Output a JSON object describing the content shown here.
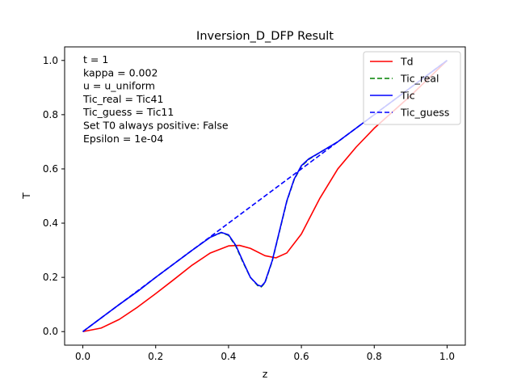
{
  "chart_data": {
    "type": "line",
    "title": "Inversion_D_DFP Result",
    "xlabel": "z",
    "ylabel": "T",
    "xlim": [
      -0.05,
      1.05
    ],
    "ylim": [
      -0.05,
      1.05
    ],
    "xticks": [
      0.0,
      0.2,
      0.4,
      0.6,
      0.8,
      1.0
    ],
    "xtick_labels": [
      "0.0",
      "0.2",
      "0.4",
      "0.6",
      "0.8",
      "1.0"
    ],
    "yticks": [
      0.0,
      0.2,
      0.4,
      0.6,
      0.8,
      1.0
    ],
    "ytick_labels": [
      "0.0",
      "0.2",
      "0.4",
      "0.6",
      "0.8",
      "1.0"
    ],
    "grid": false,
    "legend_position": "top-right",
    "annotation_lines": [
      "t = 1",
      "kappa = 0.002",
      "u = u_uniform",
      "Tic_real = Tic41",
      "Tic_guess = Tic11",
      "Set T0 always positive: False",
      "Epsilon = 1e-04"
    ],
    "series": [
      {
        "name": "Td",
        "color": "#ff0000",
        "dash": "solid",
        "x": [
          0.0,
          0.05,
          0.1,
          0.15,
          0.2,
          0.25,
          0.3,
          0.35,
          0.4,
          0.43,
          0.46,
          0.5,
          0.53,
          0.56,
          0.6,
          0.65,
          0.7,
          0.75,
          0.8,
          0.85,
          0.9,
          0.95,
          1.0
        ],
        "y": [
          0.0,
          0.013,
          0.045,
          0.09,
          0.14,
          0.192,
          0.245,
          0.29,
          0.316,
          0.318,
          0.307,
          0.28,
          0.272,
          0.29,
          0.36,
          0.49,
          0.6,
          0.68,
          0.75,
          0.81,
          0.87,
          0.935,
          1.0
        ]
      },
      {
        "name": "Tic_real",
        "color": "#008000",
        "dash": "dashed",
        "x": [
          0.0,
          0.05,
          0.1,
          0.15,
          0.2,
          0.25,
          0.3,
          0.35,
          0.38,
          0.4,
          0.42,
          0.44,
          0.46,
          0.48,
          0.49,
          0.5,
          0.52,
          0.54,
          0.56,
          0.58,
          0.6,
          0.62,
          0.65,
          0.7,
          0.75,
          0.8,
          0.85,
          0.9,
          0.95,
          1.0
        ],
        "y": [
          0.0,
          0.05,
          0.1,
          0.148,
          0.2,
          0.25,
          0.3,
          0.348,
          0.365,
          0.355,
          0.315,
          0.255,
          0.2,
          0.17,
          0.165,
          0.18,
          0.26,
          0.37,
          0.48,
          0.56,
          0.61,
          0.635,
          0.66,
          0.7,
          0.75,
          0.8,
          0.85,
          0.9,
          0.95,
          1.0
        ]
      },
      {
        "name": "Tic",
        "color": "#0000ff",
        "dash": "solid",
        "x": [
          0.0,
          0.05,
          0.1,
          0.15,
          0.2,
          0.25,
          0.3,
          0.35,
          0.38,
          0.4,
          0.42,
          0.44,
          0.46,
          0.48,
          0.49,
          0.5,
          0.52,
          0.54,
          0.56,
          0.58,
          0.6,
          0.62,
          0.65,
          0.7,
          0.75,
          0.8,
          0.85,
          0.9,
          0.95,
          1.0
        ],
        "y": [
          0.0,
          0.05,
          0.1,
          0.148,
          0.2,
          0.25,
          0.3,
          0.348,
          0.366,
          0.357,
          0.318,
          0.258,
          0.2,
          0.172,
          0.167,
          0.182,
          0.262,
          0.372,
          0.482,
          0.562,
          0.612,
          0.637,
          0.66,
          0.7,
          0.75,
          0.8,
          0.85,
          0.9,
          0.95,
          1.0
        ]
      },
      {
        "name": "Tic_guess",
        "color": "#0000ff",
        "dash": "dashed",
        "x": [
          0.0,
          0.2,
          0.4,
          0.6,
          0.8,
          1.0
        ],
        "y": [
          0.0,
          0.2,
          0.4,
          0.6,
          0.8,
          1.0
        ]
      }
    ]
  }
}
